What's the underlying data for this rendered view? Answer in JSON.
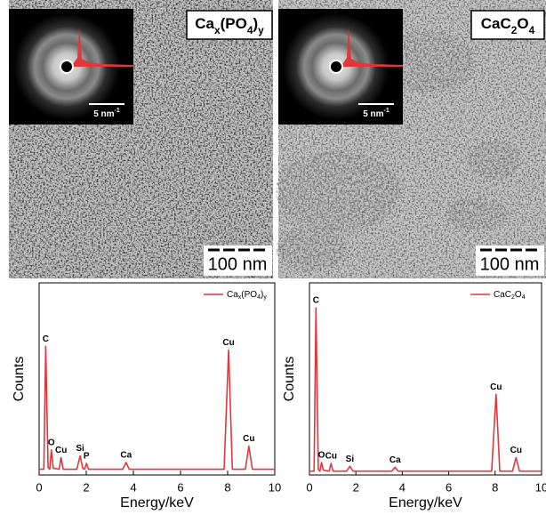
{
  "images": [
    {
      "label": "Cax(PO4)y",
      "inset_scale": "5 nm-1",
      "scale_bar": "100 nm"
    },
    {
      "label": "CaC2O4",
      "inset_scale": "5 nm-1",
      "scale_bar": "100 nm"
    }
  ],
  "chart_data": [
    {
      "type": "line",
      "xlabel": "Energy/keV",
      "ylabel": "Counts",
      "xlim": [
        0,
        10
      ],
      "xticks": [
        0,
        2,
        4,
        6,
        8,
        10
      ],
      "ylim": [
        0,
        100
      ],
      "legend": "top-right",
      "x": [
        0,
        0.2,
        0.28,
        0.38,
        0.45,
        0.52,
        0.6,
        0.85,
        0.93,
        1.02,
        1.6,
        1.74,
        1.85,
        1.93,
        2.01,
        2.1,
        3.55,
        3.69,
        3.82,
        7.85,
        8.04,
        8.2,
        8.75,
        8.9,
        9.05,
        10
      ],
      "series": [
        {
          "name": "Cax(PO4)y",
          "color": "#e0373d",
          "values": [
            3,
            3,
            67,
            4,
            3,
            13,
            3.5,
            3,
            9,
            3,
            3,
            10,
            3.5,
            3,
            6,
            3,
            3,
            6.5,
            3,
            3,
            65,
            3,
            3,
            15,
            3,
            3
          ],
          "point_labels": [
            null,
            null,
            "C",
            null,
            null,
            "O",
            null,
            null,
            "Cu",
            null,
            null,
            "Si",
            null,
            null,
            "P",
            null,
            null,
            "Ca",
            null,
            null,
            "Cu",
            null,
            null,
            "Cu",
            null,
            null
          ]
        }
      ]
    },
    {
      "type": "line",
      "xlabel": "Energy/keV",
      "ylabel": "Counts",
      "xlim": [
        0,
        10
      ],
      "xticks": [
        0,
        2,
        4,
        6,
        8,
        10
      ],
      "ylim": [
        0,
        100
      ],
      "legend": "top-right",
      "x": [
        0,
        0.2,
        0.28,
        0.38,
        0.45,
        0.52,
        0.6,
        0.85,
        0.93,
        1.02,
        1.6,
        1.74,
        1.88,
        3.55,
        3.69,
        3.82,
        7.85,
        8.04,
        8.2,
        8.75,
        8.9,
        9.05,
        10
      ],
      "series": [
        {
          "name": "CaC2O4",
          "color": "#e0373d",
          "values": [
            2,
            2,
            87,
            3,
            2,
            6.5,
            2.5,
            2,
            6,
            2,
            2,
            4.5,
            2,
            2,
            4,
            2,
            2,
            42,
            2,
            2,
            9,
            2,
            2
          ],
          "point_labels": [
            null,
            null,
            "C",
            null,
            null,
            "O",
            null,
            null,
            "Cu",
            null,
            null,
            "Si",
            null,
            null,
            "Ca",
            null,
            null,
            "Cu",
            null,
            null,
            "Cu",
            null,
            null
          ]
        }
      ]
    }
  ]
}
